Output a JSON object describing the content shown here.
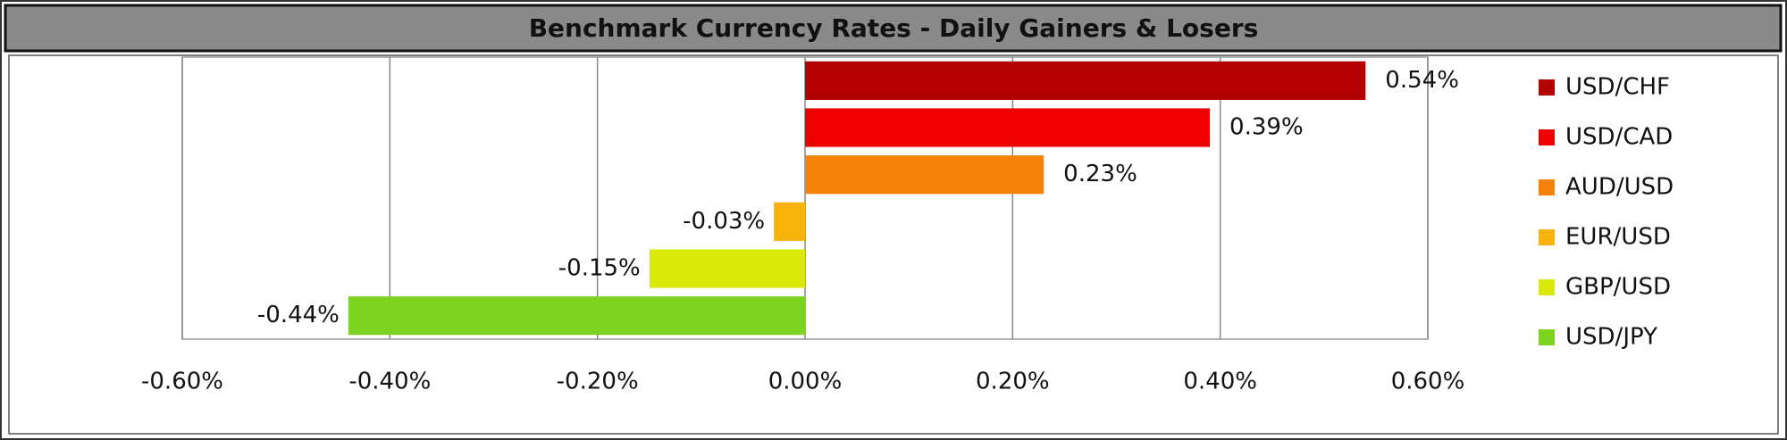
{
  "chart_data": {
    "type": "bar",
    "orientation": "horizontal",
    "title": "Benchmark Currency Rates - Daily Gainers & Losers",
    "categories": [
      "USD/CHF",
      "USD/CAD",
      "AUD/USD",
      "EUR/USD",
      "GBP/USD",
      "USD/JPY"
    ],
    "values": [
      0.54,
      0.39,
      0.23,
      -0.03,
      -0.15,
      -0.44
    ],
    "value_labels": [
      "0.54%",
      "0.39%",
      "0.23%",
      "-0.03%",
      "-0.15%",
      "-0.44%"
    ],
    "colors": [
      "#b30000",
      "#ee0000",
      "#f5820a",
      "#f7b20c",
      "#d9ea0a",
      "#7ed321"
    ],
    "xlim": [
      -0.6,
      0.6
    ],
    "xticks": [
      {
        "value": -0.6,
        "label": "-0.60%"
      },
      {
        "value": -0.4,
        "label": "-0.40%"
      },
      {
        "value": -0.2,
        "label": "-0.20%"
      },
      {
        "value": 0,
        "label": "0.00%"
      },
      {
        "value": 0.2,
        "label": "0.20%"
      },
      {
        "value": 0.4,
        "label": "0.40%"
      },
      {
        "value": 0.6,
        "label": "0.60%"
      }
    ],
    "grid": true,
    "legend": "right"
  }
}
